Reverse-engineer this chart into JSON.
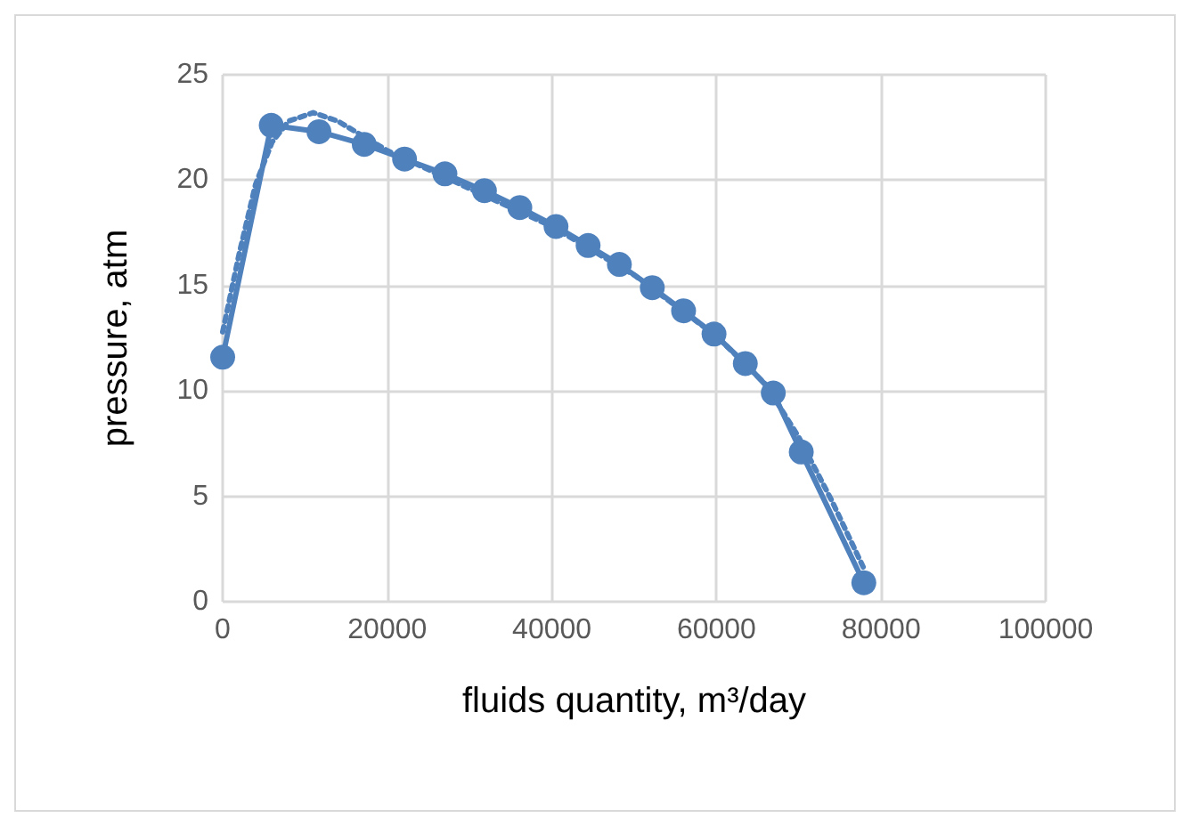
{
  "chart_data": {
    "type": "line",
    "xlabel": "fluids quantity, m³/day",
    "ylabel": "pressure, atm",
    "xlim": [
      0,
      100000
    ],
    "xticks": [
      0,
      20000,
      40000,
      60000,
      80000,
      100000
    ],
    "ylim": [
      0,
      25
    ],
    "yticks": [
      0,
      5,
      10,
      15,
      20,
      25
    ],
    "grid": true,
    "series": [
      {
        "color": "#4f81bd",
        "marker": "circle",
        "line_style": "solid",
        "x": [
          0,
          5900,
          11700,
          17200,
          22100,
          27000,
          31800,
          36100,
          40500,
          44400,
          48200,
          52200,
          56000,
          59700,
          63500,
          66900,
          70300,
          77900
        ],
        "values": [
          11.6,
          22.6,
          22.3,
          21.7,
          21.0,
          20.3,
          19.5,
          18.7,
          17.8,
          16.9,
          16.0,
          14.9,
          13.8,
          12.7,
          11.3,
          9.9,
          7.1,
          0.9
        ]
      },
      {
        "color": "#4f81bd",
        "marker": "none",
        "line_style": "dotted",
        "x": [
          0,
          2000,
          4000,
          6000,
          8000,
          11000,
          14000,
          20000,
          30000,
          40000,
          50000,
          60000,
          66000,
          70000,
          74000,
          78000
        ],
        "values": [
          12.8,
          16.5,
          19.8,
          21.8,
          22.8,
          23.2,
          22.8,
          21.4,
          19.6,
          17.8,
          15.5,
          12.6,
          10.3,
          7.8,
          4.8,
          1.5
        ]
      }
    ]
  }
}
